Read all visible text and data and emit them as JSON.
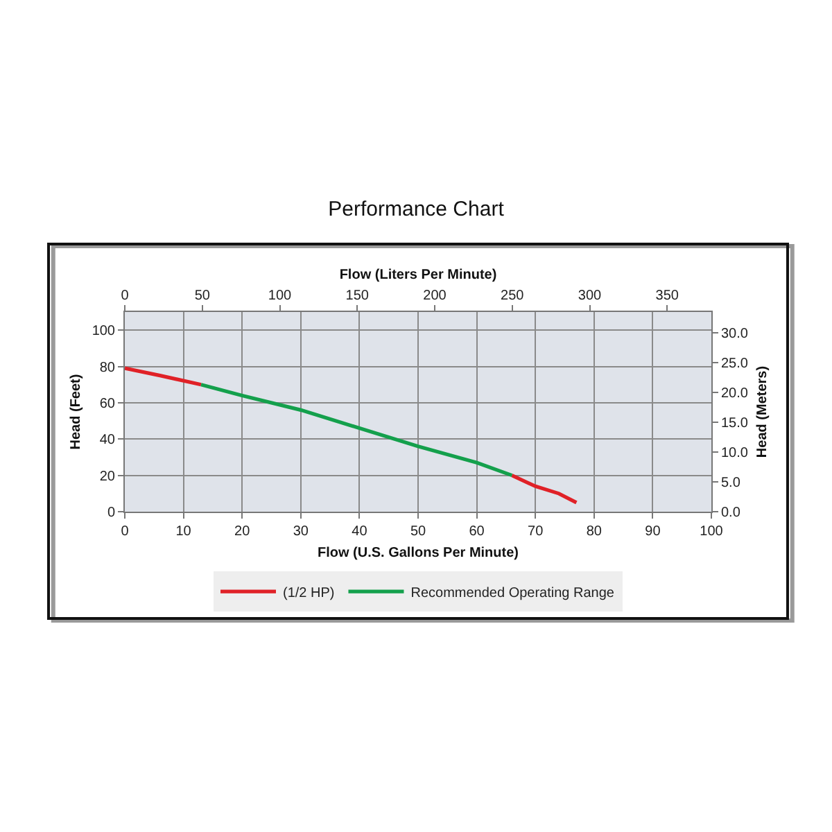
{
  "chart_data": {
    "type": "line",
    "title": "Performance Chart",
    "xlabel": "Flow (U.S. Gallons Per Minute)",
    "x2label": "Flow (Liters Per Minute)",
    "ylabel": "Head (Feet)",
    "y2label": "Head (Meters)",
    "xlim": [
      0,
      100
    ],
    "xticks": [
      0,
      10,
      20,
      30,
      40,
      50,
      60,
      70,
      80,
      90,
      100
    ],
    "x2lim": [
      0,
      378.5
    ],
    "x2ticks": [
      0,
      50,
      100,
      150,
      200,
      250,
      300,
      350
    ],
    "ylim": [
      0,
      110
    ],
    "yticks": [
      0,
      20,
      40,
      60,
      80,
      100
    ],
    "y2lim": [
      0,
      33.5
    ],
    "y2ticks": [
      {
        "value": 0,
        "label": "0.0"
      },
      {
        "value": 5,
        "label": "5.0"
      },
      {
        "value": 10,
        "label": "10.0"
      },
      {
        "value": 15,
        "label": "15.0"
      },
      {
        "value": 20,
        "label": "20.0"
      },
      {
        "value": 25,
        "label": "25.0"
      },
      {
        "value": 30,
        "label": "30.0"
      }
    ],
    "series": [
      {
        "name": "(1/2 HP)",
        "color": "#e02127",
        "x": [
          0,
          6,
          13,
          40,
          66,
          70,
          74,
          77
        ],
        "values": [
          79,
          75,
          70,
          null,
          20,
          14,
          10,
          5
        ]
      },
      {
        "name": "Recommended Operating Range",
        "color": "#14a04c",
        "x": [
          13,
          20,
          30,
          40,
          50,
          60,
          66
        ],
        "values": [
          70,
          64,
          56,
          46,
          36,
          27,
          20
        ]
      }
    ],
    "grid": true,
    "legend": "bottom",
    "marker": "none",
    "line_style": "solid"
  }
}
